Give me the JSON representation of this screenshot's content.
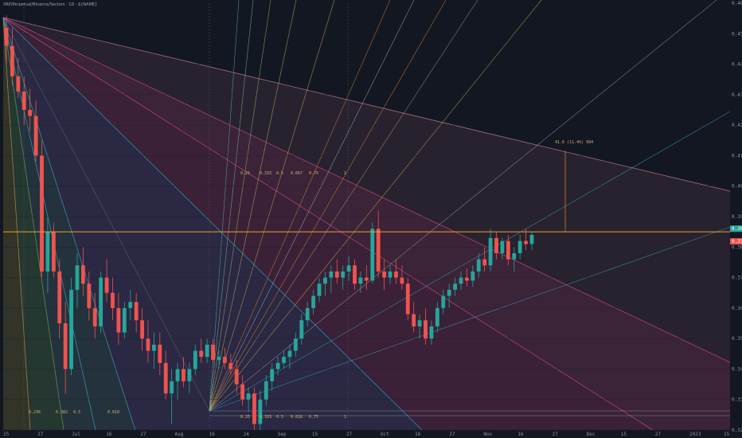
{
  "chart_data": {
    "type": "candlestick",
    "title": "XRP/Perpetual/Binance/Sectors · 1D · ${NAME}",
    "x_axis": {
      "labels": [
        "15",
        "27",
        "Jul",
        "16",
        "27",
        "Aug",
        "16",
        "24",
        "Sep",
        "15",
        "27",
        "Oct",
        "16",
        "27",
        "Nov",
        "16",
        "27",
        "Dec",
        "15",
        "27",
        "2023",
        "15"
      ]
    },
    "y_axis": {
      "range": [
        0.32,
        0.46
      ],
      "labels": [
        "0.4600",
        "0.4500",
        "0.4400",
        "0.4300",
        "0.4200",
        "0.4100",
        "0.4000",
        "0.3900",
        "0.3800",
        "0.3700",
        "0.3600",
        "0.3500",
        "0.3400",
        "0.3300",
        "0.3200"
      ],
      "current_price": "0.3850",
      "current_price_change": "0.3784"
    },
    "horizontal_line": {
      "price": 0.385,
      "label": "0.3850"
    },
    "annotation": {
      "text": "41.6 (11.4%) 994"
    },
    "fan_labels_left": [
      "0.236",
      "0.382",
      "0.5",
      "0.618",
      "0.786",
      "1",
      "1.272",
      "1.618"
    ],
    "fan_labels_mid": [
      "0.25",
      "0.333",
      "0.5",
      "0.667",
      "0.75",
      "1"
    ],
    "fib_time_labels": [
      "0.25",
      "0.333",
      "0.5",
      "0.618",
      "0.75",
      "1"
    ],
    "candles": [
      {
        "o": 0.452,
        "h": 0.456,
        "l": 0.44,
        "c": 0.446
      },
      {
        "o": 0.446,
        "h": 0.452,
        "l": 0.433,
        "c": 0.436
      },
      {
        "o": 0.436,
        "h": 0.442,
        "l": 0.429,
        "c": 0.431
      },
      {
        "o": 0.431,
        "h": 0.436,
        "l": 0.42,
        "c": 0.425
      },
      {
        "o": 0.425,
        "h": 0.432,
        "l": 0.418,
        "c": 0.423
      },
      {
        "o": 0.423,
        "h": 0.428,
        "l": 0.408,
        "c": 0.41
      },
      {
        "o": 0.41,
        "h": 0.415,
        "l": 0.37,
        "c": 0.372
      },
      {
        "o": 0.372,
        "h": 0.39,
        "l": 0.365,
        "c": 0.385
      },
      {
        "o": 0.385,
        "h": 0.388,
        "l": 0.37,
        "c": 0.372
      },
      {
        "o": 0.372,
        "h": 0.376,
        "l": 0.35,
        "c": 0.355
      },
      {
        "o": 0.355,
        "h": 0.362,
        "l": 0.332,
        "c": 0.34
      },
      {
        "o": 0.34,
        "h": 0.37,
        "l": 0.338,
        "c": 0.366
      },
      {
        "o": 0.366,
        "h": 0.378,
        "l": 0.36,
        "c": 0.374
      },
      {
        "o": 0.374,
        "h": 0.38,
        "l": 0.364,
        "c": 0.368
      },
      {
        "o": 0.368,
        "h": 0.372,
        "l": 0.356,
        "c": 0.36
      },
      {
        "o": 0.36,
        "h": 0.365,
        "l": 0.35,
        "c": 0.354
      },
      {
        "o": 0.354,
        "h": 0.372,
        "l": 0.352,
        "c": 0.37
      },
      {
        "o": 0.37,
        "h": 0.376,
        "l": 0.362,
        "c": 0.365
      },
      {
        "o": 0.365,
        "h": 0.37,
        "l": 0.356,
        "c": 0.36
      },
      {
        "o": 0.36,
        "h": 0.365,
        "l": 0.348,
        "c": 0.352
      },
      {
        "o": 0.352,
        "h": 0.362,
        "l": 0.35,
        "c": 0.36
      },
      {
        "o": 0.36,
        "h": 0.366,
        "l": 0.356,
        "c": 0.362
      },
      {
        "o": 0.362,
        "h": 0.365,
        "l": 0.352,
        "c": 0.356
      },
      {
        "o": 0.356,
        "h": 0.36,
        "l": 0.346,
        "c": 0.35
      },
      {
        "o": 0.35,
        "h": 0.356,
        "l": 0.342,
        "c": 0.346
      },
      {
        "o": 0.346,
        "h": 0.352,
        "l": 0.34,
        "c": 0.348
      },
      {
        "o": 0.348,
        "h": 0.352,
        "l": 0.338,
        "c": 0.342
      },
      {
        "o": 0.342,
        "h": 0.346,
        "l": 0.33,
        "c": 0.332
      },
      {
        "o": 0.332,
        "h": 0.34,
        "l": 0.322,
        "c": 0.336
      },
      {
        "o": 0.336,
        "h": 0.342,
        "l": 0.33,
        "c": 0.34
      },
      {
        "o": 0.34,
        "h": 0.344,
        "l": 0.334,
        "c": 0.336
      },
      {
        "o": 0.336,
        "h": 0.342,
        "l": 0.332,
        "c": 0.34
      },
      {
        "o": 0.34,
        "h": 0.348,
        "l": 0.338,
        "c": 0.346
      },
      {
        "o": 0.346,
        "h": 0.35,
        "l": 0.342,
        "c": 0.344
      },
      {
        "o": 0.344,
        "h": 0.35,
        "l": 0.342,
        "c": 0.348
      },
      {
        "o": 0.348,
        "h": 0.35,
        "l": 0.342,
        "c": 0.343
      },
      {
        "o": 0.343,
        "h": 0.346,
        "l": 0.34,
        "c": 0.344
      },
      {
        "o": 0.344,
        "h": 0.347,
        "l": 0.34,
        "c": 0.342
      },
      {
        "o": 0.342,
        "h": 0.345,
        "l": 0.338,
        "c": 0.34
      },
      {
        "o": 0.34,
        "h": 0.343,
        "l": 0.332,
        "c": 0.335
      },
      {
        "o": 0.335,
        "h": 0.338,
        "l": 0.328,
        "c": 0.33
      },
      {
        "o": 0.33,
        "h": 0.334,
        "l": 0.326,
        "c": 0.332
      },
      {
        "o": 0.332,
        "h": 0.334,
        "l": 0.32,
        "c": 0.322
      },
      {
        "o": 0.322,
        "h": 0.333,
        "l": 0.32,
        "c": 0.33
      },
      {
        "o": 0.33,
        "h": 0.338,
        "l": 0.328,
        "c": 0.336
      },
      {
        "o": 0.336,
        "h": 0.342,
        "l": 0.333,
        "c": 0.34
      },
      {
        "o": 0.34,
        "h": 0.344,
        "l": 0.338,
        "c": 0.342
      },
      {
        "o": 0.342,
        "h": 0.346,
        "l": 0.34,
        "c": 0.344
      },
      {
        "o": 0.344,
        "h": 0.348,
        "l": 0.34,
        "c": 0.346
      },
      {
        "o": 0.346,
        "h": 0.352,
        "l": 0.344,
        "c": 0.35
      },
      {
        "o": 0.35,
        "h": 0.358,
        "l": 0.348,
        "c": 0.356
      },
      {
        "o": 0.356,
        "h": 0.362,
        "l": 0.354,
        "c": 0.36
      },
      {
        "o": 0.36,
        "h": 0.366,
        "l": 0.358,
        "c": 0.364
      },
      {
        "o": 0.364,
        "h": 0.37,
        "l": 0.362,
        "c": 0.368
      },
      {
        "o": 0.368,
        "h": 0.372,
        "l": 0.364,
        "c": 0.37
      },
      {
        "o": 0.37,
        "h": 0.374,
        "l": 0.365,
        "c": 0.372
      },
      {
        "o": 0.372,
        "h": 0.376,
        "l": 0.368,
        "c": 0.37
      },
      {
        "o": 0.37,
        "h": 0.374,
        "l": 0.366,
        "c": 0.372
      },
      {
        "o": 0.372,
        "h": 0.377,
        "l": 0.369,
        "c": 0.374
      },
      {
        "o": 0.374,
        "h": 0.376,
        "l": 0.366,
        "c": 0.368
      },
      {
        "o": 0.368,
        "h": 0.372,
        "l": 0.365,
        "c": 0.37
      },
      {
        "o": 0.37,
        "h": 0.374,
        "l": 0.366,
        "c": 0.369
      },
      {
        "o": 0.369,
        "h": 0.388,
        "l": 0.368,
        "c": 0.386
      },
      {
        "o": 0.386,
        "h": 0.392,
        "l": 0.37,
        "c": 0.372
      },
      {
        "o": 0.372,
        "h": 0.376,
        "l": 0.366,
        "c": 0.37
      },
      {
        "o": 0.37,
        "h": 0.374,
        "l": 0.368,
        "c": 0.372
      },
      {
        "o": 0.372,
        "h": 0.376,
        "l": 0.368,
        "c": 0.37
      },
      {
        "o": 0.37,
        "h": 0.374,
        "l": 0.366,
        "c": 0.368
      },
      {
        "o": 0.368,
        "h": 0.37,
        "l": 0.356,
        "c": 0.358
      },
      {
        "o": 0.358,
        "h": 0.362,
        "l": 0.352,
        "c": 0.354
      },
      {
        "o": 0.354,
        "h": 0.358,
        "l": 0.35,
        "c": 0.356
      },
      {
        "o": 0.356,
        "h": 0.36,
        "l": 0.348,
        "c": 0.35
      },
      {
        "o": 0.35,
        "h": 0.356,
        "l": 0.348,
        "c": 0.354
      },
      {
        "o": 0.354,
        "h": 0.362,
        "l": 0.352,
        "c": 0.36
      },
      {
        "o": 0.36,
        "h": 0.366,
        "l": 0.358,
        "c": 0.364
      },
      {
        "o": 0.364,
        "h": 0.368,
        "l": 0.36,
        "c": 0.366
      },
      {
        "o": 0.366,
        "h": 0.37,
        "l": 0.364,
        "c": 0.368
      },
      {
        "o": 0.368,
        "h": 0.372,
        "l": 0.366,
        "c": 0.37
      },
      {
        "o": 0.37,
        "h": 0.373,
        "l": 0.367,
        "c": 0.369
      },
      {
        "o": 0.369,
        "h": 0.374,
        "l": 0.367,
        "c": 0.372
      },
      {
        "o": 0.372,
        "h": 0.378,
        "l": 0.37,
        "c": 0.376
      },
      {
        "o": 0.376,
        "h": 0.38,
        "l": 0.372,
        "c": 0.374
      },
      {
        "o": 0.374,
        "h": 0.386,
        "l": 0.372,
        "c": 0.383
      },
      {
        "o": 0.383,
        "h": 0.385,
        "l": 0.376,
        "c": 0.378
      },
      {
        "o": 0.378,
        "h": 0.383,
        "l": 0.376,
        "c": 0.382
      },
      {
        "o": 0.382,
        "h": 0.384,
        "l": 0.374,
        "c": 0.376
      },
      {
        "o": 0.376,
        "h": 0.38,
        "l": 0.372,
        "c": 0.378
      },
      {
        "o": 0.378,
        "h": 0.384,
        "l": 0.376,
        "c": 0.382
      },
      {
        "o": 0.382,
        "h": 0.386,
        "l": 0.379,
        "c": 0.381
      },
      {
        "o": 0.381,
        "h": 0.385,
        "l": 0.379,
        "c": 0.384
      }
    ],
    "colors": {
      "background": "#131722",
      "up": "#26a69a",
      "down": "#ef5350",
      "price_line": "#f0a030",
      "price_tag_up": "#26a69a",
      "price_tag_down": "#ef5350",
      "grid": "#1e2230"
    }
  }
}
